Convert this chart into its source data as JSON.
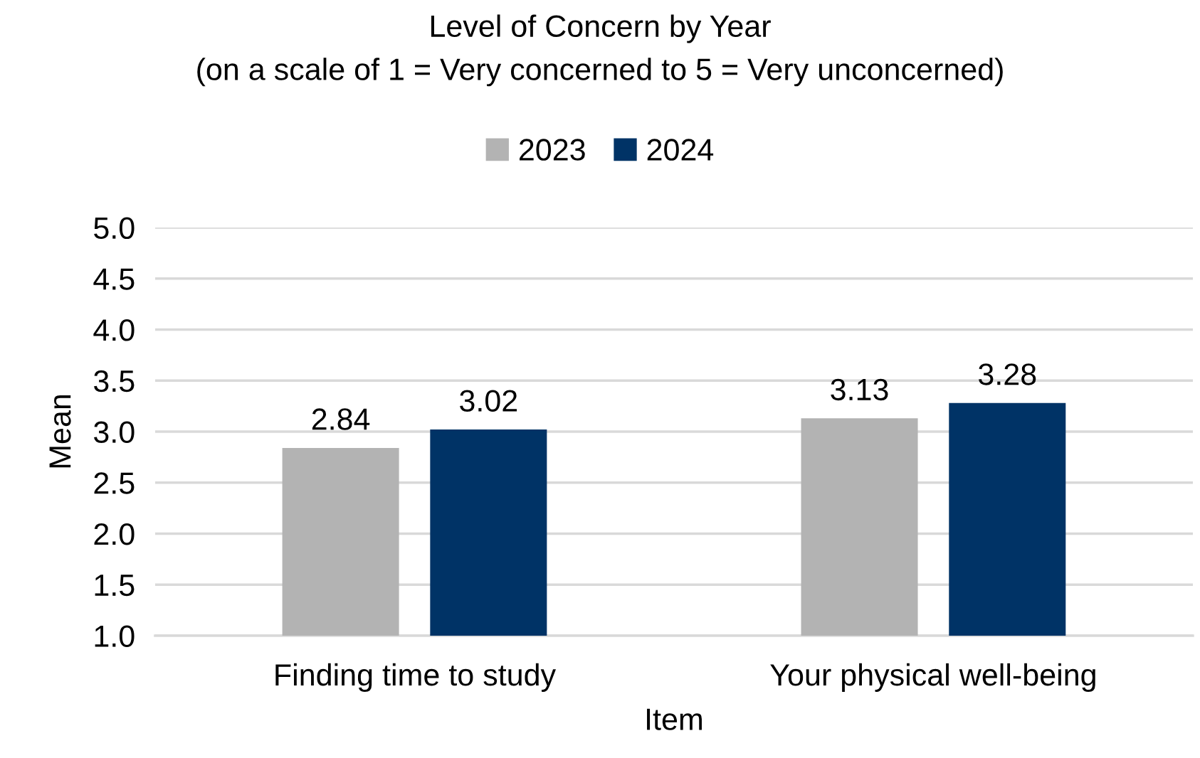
{
  "chart_data": {
    "type": "bar",
    "title": "Level of Concern by Year",
    "subtitle": "(on a scale of 1 = Very concerned to 5 = Very unconcerned)",
    "xlabel": "Item",
    "ylabel": "Mean",
    "categories": [
      "Finding time to study",
      "Your physical well-being"
    ],
    "series": [
      {
        "name": "2023",
        "color": "#b3b3b3",
        "values": [
          2.84,
          3.13
        ]
      },
      {
        "name": "2024",
        "color": "#003366",
        "values": [
          3.02,
          3.28
        ]
      }
    ],
    "ylim": [
      1,
      5
    ],
    "yticks": [
      {
        "value": 1,
        "label": "1.0"
      },
      1.5,
      {
        "value": 2,
        "label": "2.0"
      },
      2.5,
      {
        "value": 3,
        "label": "3.0"
      },
      3.5,
      {
        "value": 4,
        "label": "4.0"
      },
      4.5,
      {
        "value": 5,
        "label": "5.0"
      }
    ],
    "grid": "y",
    "legend": "top",
    "data_labels": true
  }
}
